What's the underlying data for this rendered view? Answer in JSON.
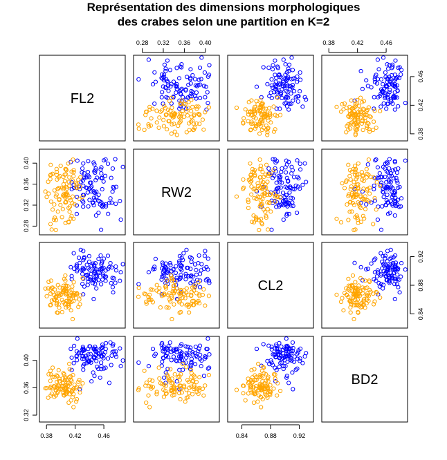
{
  "title": {
    "line1": "Représentation des dimensions morphologiques",
    "line2": "des crabes selon une partition en K=2"
  },
  "chart_data": {
    "type": "scatter",
    "variables": [
      "FL2",
      "RW2",
      "CL2",
      "BD2"
    ],
    "colors": {
      "cluster1": "#0000ff",
      "cluster2": "#ffa500"
    },
    "clusters": [
      {
        "color": "#0000ff",
        "center": {
          "FL2": 0.445,
          "RW2": 0.355,
          "CL2": 0.898,
          "BD2": 0.405
        },
        "spread": {
          "FL2": 0.016,
          "RW2": 0.028,
          "CL2": 0.014,
          "BD2": 0.013
        },
        "count": 100
      },
      {
        "color": "#ffa500",
        "center": {
          "FL2": 0.405,
          "RW2": 0.345,
          "CL2": 0.866,
          "BD2": 0.362
        },
        "spread": {
          "FL2": 0.013,
          "RW2": 0.032,
          "CL2": 0.011,
          "BD2": 0.012
        },
        "count": 100
      }
    ],
    "axes": {
      "FL2": {
        "range": [
          0.375,
          0.485
        ],
        "ticks": [
          "0.38",
          "0.42",
          "0.46"
        ]
      },
      "RW2": {
        "range": [
          0.27,
          0.42
        ],
        "ticks": [
          "0.28",
          "0.32",
          "0.36",
          "0.40"
        ]
      },
      "CL2": {
        "range": [
          0.825,
          0.935
        ],
        "ticks": [
          "0.84",
          "0.88",
          "0.92"
        ]
      },
      "BD2": {
        "range": [
          0.315,
          0.43
        ],
        "ticks": [
          "0.32",
          "0.36",
          "0.40"
        ]
      }
    },
    "tick_placement": {
      "top": [
        "",
        "RW2",
        "",
        "FL2"
      ],
      "bottom": [
        "FL2",
        "",
        "CL2",
        ""
      ],
      "left": [
        "",
        "RW2",
        "",
        "BD2"
      ],
      "right": [
        "FL2",
        "",
        "CL2",
        ""
      ]
    }
  }
}
